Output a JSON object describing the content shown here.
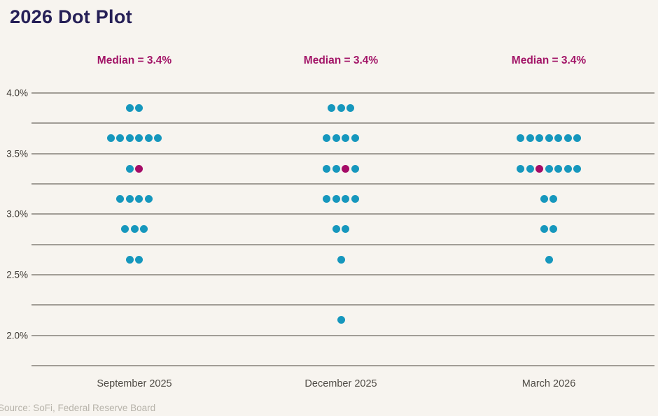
{
  "chart_data": {
    "type": "scatter",
    "title": "2026 Dot Plot",
    "source": "Source: SoFi, Federal Reserve Board",
    "ylim": [
      1.75,
      4.0
    ],
    "grid": true,
    "gridline_values": [
      4.0,
      3.75,
      3.5,
      3.25,
      3.0,
      2.75,
      2.5,
      2.25,
      2.0,
      1.75
    ],
    "yticks": [
      {
        "label": "4.0%",
        "value": 4.0
      },
      {
        "label": "3.5%",
        "value": 3.5
      },
      {
        "label": "3.0%",
        "value": 3.0
      },
      {
        "label": "2.5%",
        "value": 2.5
      },
      {
        "label": "2.0%",
        "value": 2.0
      }
    ],
    "columns": [
      {
        "label": "September 2025",
        "median_label": "Median = 3.4%",
        "median_value": "3.4%",
        "dots": [
          {
            "rate": 3.875,
            "count": 2,
            "median_index": null
          },
          {
            "rate": 3.625,
            "count": 6,
            "median_index": null
          },
          {
            "rate": 3.375,
            "count": 2,
            "median_index": 1
          },
          {
            "rate": 3.125,
            "count": 4,
            "median_index": null
          },
          {
            "rate": 2.875,
            "count": 3,
            "median_index": null
          },
          {
            "rate": 2.625,
            "count": 2,
            "median_index": null
          }
        ]
      },
      {
        "label": "December 2025",
        "median_label": "Median = 3.4%",
        "median_value": "3.4%",
        "dots": [
          {
            "rate": 3.875,
            "count": 3,
            "median_index": null
          },
          {
            "rate": 3.625,
            "count": 4,
            "median_index": null
          },
          {
            "rate": 3.375,
            "count": 4,
            "median_index": 2
          },
          {
            "rate": 3.125,
            "count": 4,
            "median_index": null
          },
          {
            "rate": 2.875,
            "count": 2,
            "median_index": null
          },
          {
            "rate": 2.625,
            "count": 1,
            "median_index": null
          },
          {
            "rate": 2.125,
            "count": 1,
            "median_index": null
          }
        ]
      },
      {
        "label": "March 2026",
        "median_label": "Median = 3.4%",
        "median_value": "3.4%",
        "dots": [
          {
            "rate": 3.625,
            "count": 7,
            "median_index": null
          },
          {
            "rate": 3.375,
            "count": 7,
            "median_index": 2
          },
          {
            "rate": 3.125,
            "count": 2,
            "median_index": null
          },
          {
            "rate": 2.875,
            "count": 2,
            "median_index": null
          },
          {
            "rate": 2.625,
            "count": 1,
            "median_index": null
          }
        ]
      }
    ],
    "colors": {
      "background": "#f7f4ef",
      "title": "#262057",
      "dot": "#1697bd",
      "median_dot": "#a50b67",
      "median_label": "#a21467",
      "gridline": "#8b877f"
    }
  }
}
